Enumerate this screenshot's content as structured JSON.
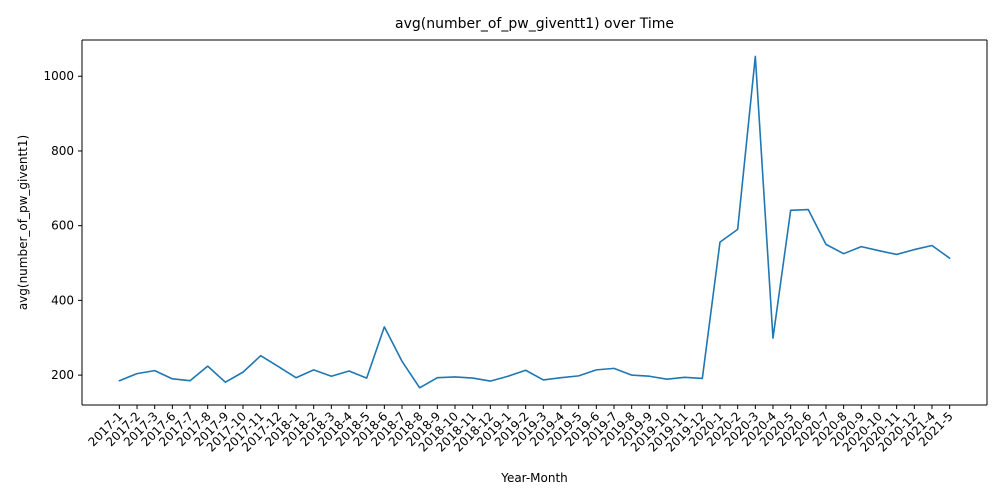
{
  "chart_data": {
    "type": "line",
    "title": "avg(number_of_pw_giventt1) over Time",
    "xlabel": "Year-Month",
    "ylabel": "avg(number_of_pw_giventt1)",
    "ylim": [
      120,
      1097
    ],
    "yticks": [
      200,
      400,
      600,
      800,
      1000
    ],
    "grid": false,
    "color": "#1f77b4",
    "categories": [
      "2017-1",
      "2017-2",
      "2017-3",
      "2017-6",
      "2017-7",
      "2017-8",
      "2017-9",
      "2017-10",
      "2017-11",
      "2017-12",
      "2018-1",
      "2018-2",
      "2018-3",
      "2018-4",
      "2018-5",
      "2018-6",
      "2018-7",
      "2018-8",
      "2018-9",
      "2018-10",
      "2018-11",
      "2018-12",
      "2019-1",
      "2019-2",
      "2019-3",
      "2019-4",
      "2019-5",
      "2019-6",
      "2019-7",
      "2019-8",
      "2019-9",
      "2019-10",
      "2019-11",
      "2019-12",
      "2020-1",
      "2020-2",
      "2020-3",
      "2020-4",
      "2020-5",
      "2020-6",
      "2020-7",
      "2020-8",
      "2020-9",
      "2020-10",
      "2020-11",
      "2020-12",
      "2021-4",
      "2021-5"
    ],
    "series": [
      {
        "values": [
          185,
          204,
          212,
          190,
          185,
          224,
          181,
          208,
          252,
          223,
          193,
          214,
          197,
          211,
          192,
          329,
          237,
          166,
          193,
          195,
          192,
          184,
          197,
          213,
          187,
          193,
          198,
          214,
          218,
          200,
          197,
          189,
          194,
          191,
          556,
          590,
          1053,
          299,
          641,
          643,
          550,
          525,
          544,
          533,
          523,
          536,
          547,
          513
        ]
      }
    ]
  }
}
